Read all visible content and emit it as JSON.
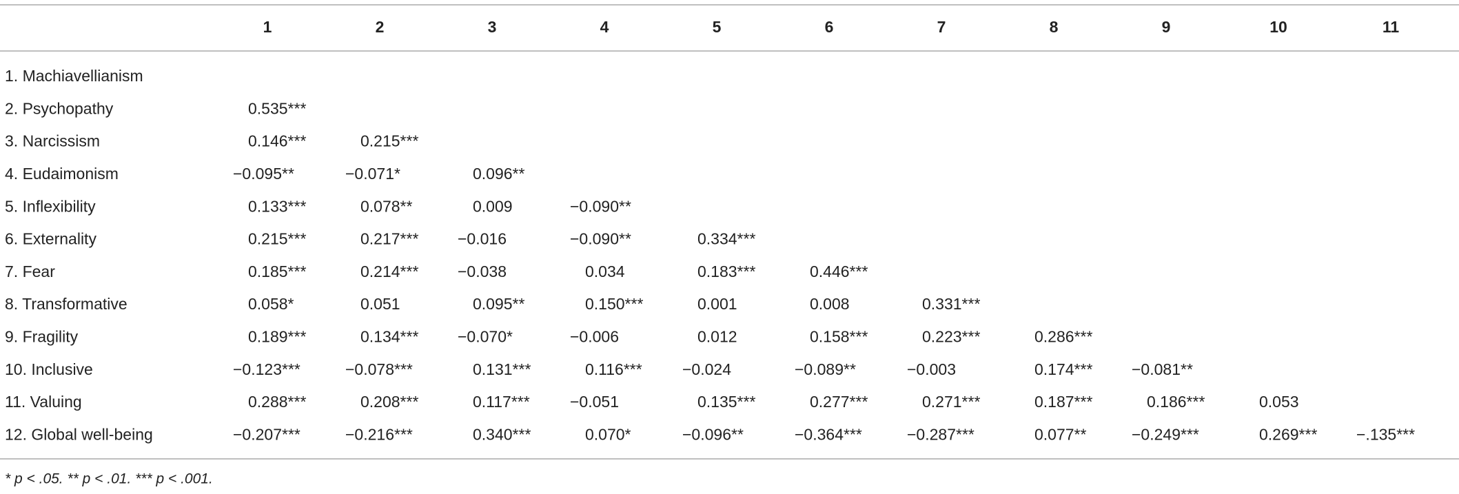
{
  "table": {
    "columns": [
      "1",
      "2",
      "3",
      "4",
      "5",
      "6",
      "7",
      "8",
      "9",
      "10",
      "11"
    ],
    "rows": [
      {
        "label": "1. Machiavellianism",
        "cells": []
      },
      {
        "label": "2. Psychopathy",
        "cells": [
          "0.535***"
        ]
      },
      {
        "label": "3. Narcissism",
        "cells": [
          "0.146***",
          "0.215***"
        ]
      },
      {
        "label": "4. Eudaimonism",
        "cells": [
          "−0.095**",
          "−0.071*",
          "0.096**"
        ]
      },
      {
        "label": "5. Inflexibility",
        "cells": [
          "0.133***",
          "0.078**",
          "0.009",
          "−0.090**"
        ]
      },
      {
        "label": "6. Externality",
        "cells": [
          "0.215***",
          "0.217***",
          "−0.016",
          "−0.090**",
          "0.334***"
        ]
      },
      {
        "label": "7. Fear",
        "cells": [
          "0.185***",
          "0.214***",
          "−0.038",
          "0.034",
          "0.183***",
          "0.446***"
        ]
      },
      {
        "label": "8. Transformative",
        "cells": [
          "0.058*",
          "0.051",
          "0.095**",
          "0.150***",
          "0.001",
          "0.008",
          "0.331***"
        ]
      },
      {
        "label": "9. Fragility",
        "cells": [
          "0.189***",
          "0.134***",
          "−0.070*",
          "−0.006",
          "0.012",
          "0.158***",
          "0.223***",
          "0.286***"
        ]
      },
      {
        "label": "10. Inclusive",
        "cells": [
          "−0.123***",
          "−0.078***",
          "0.131***",
          "0.116***",
          "−0.024",
          "−0.089**",
          "−0.003",
          "0.174***",
          "−0.081**"
        ]
      },
      {
        "label": "11. Valuing",
        "cells": [
          "0.288***",
          "0.208***",
          "0.117***",
          "−0.051",
          "0.135***",
          "0.277***",
          "0.271***",
          "0.187***",
          "0.186***",
          "0.053"
        ]
      },
      {
        "label": "12. Global well-being",
        "cells": [
          "−0.207***",
          "−0.216***",
          "0.340***",
          "0.070*",
          "−0.096**",
          "−0.364***",
          "−0.287***",
          "0.077**",
          "−0.249***",
          "0.269***",
          "−.135***"
        ]
      }
    ],
    "footnote": "* p < .05. ** p < .01. *** p < .001."
  }
}
